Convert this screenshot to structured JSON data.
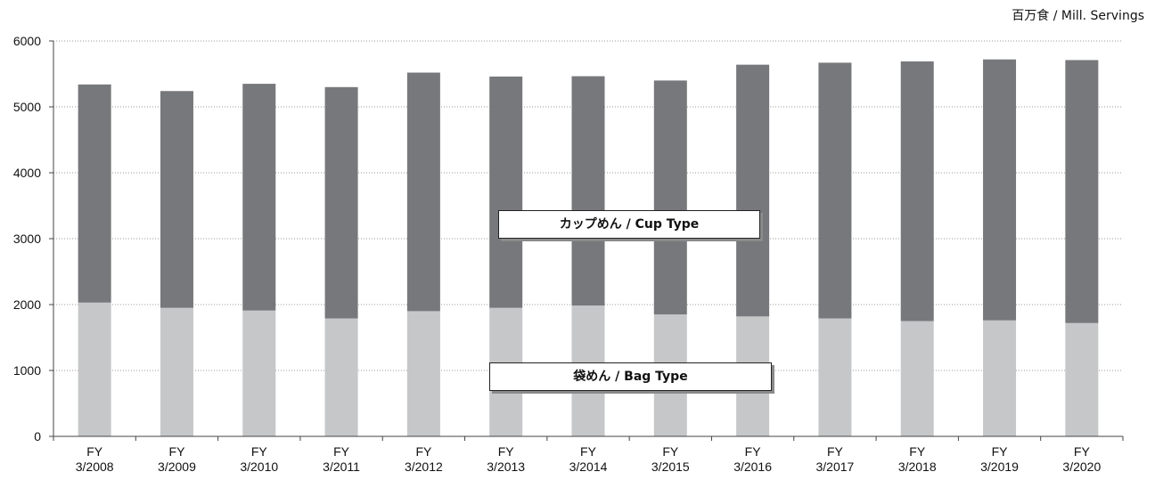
{
  "unit_label": "百万食 / Mill. Servings",
  "chart_data": {
    "type": "bar",
    "stacked": true,
    "categories": [
      [
        "FY",
        "3/2008"
      ],
      [
        "FY",
        "3/2009"
      ],
      [
        "FY",
        "3/2010"
      ],
      [
        "FY",
        "3/2011"
      ],
      [
        "FY",
        "3/2012"
      ],
      [
        "FY",
        "3/2013"
      ],
      [
        "FY",
        "3/2014"
      ],
      [
        "FY",
        "3/2015"
      ],
      [
        "FY",
        "3/2016"
      ],
      [
        "FY",
        "3/2017"
      ],
      [
        "FY",
        "3/2018"
      ],
      [
        "FY",
        "3/2019"
      ],
      [
        "FY",
        "3/2020"
      ]
    ],
    "series": [
      {
        "name": "袋めん / Bag Type",
        "color": "#c6c7c9",
        "values": [
          2030,
          1950,
          1910,
          1790,
          1900,
          1950,
          1985,
          1850,
          1820,
          1790,
          1750,
          1760,
          1720
        ]
      },
      {
        "name": "カップめん / Cup Type",
        "color": "#77787b",
        "values": [
          3310,
          3290,
          3440,
          3510,
          3620,
          3510,
          3480,
          3550,
          3820,
          3880,
          3940,
          3960,
          3990
        ]
      }
    ],
    "y_ticks": [
      0,
      1000,
      2000,
      3000,
      4000,
      5000,
      6000
    ],
    "ylim": [
      0,
      6000
    ],
    "grid": "horizontal dotted",
    "legend": "in-plot labels"
  }
}
